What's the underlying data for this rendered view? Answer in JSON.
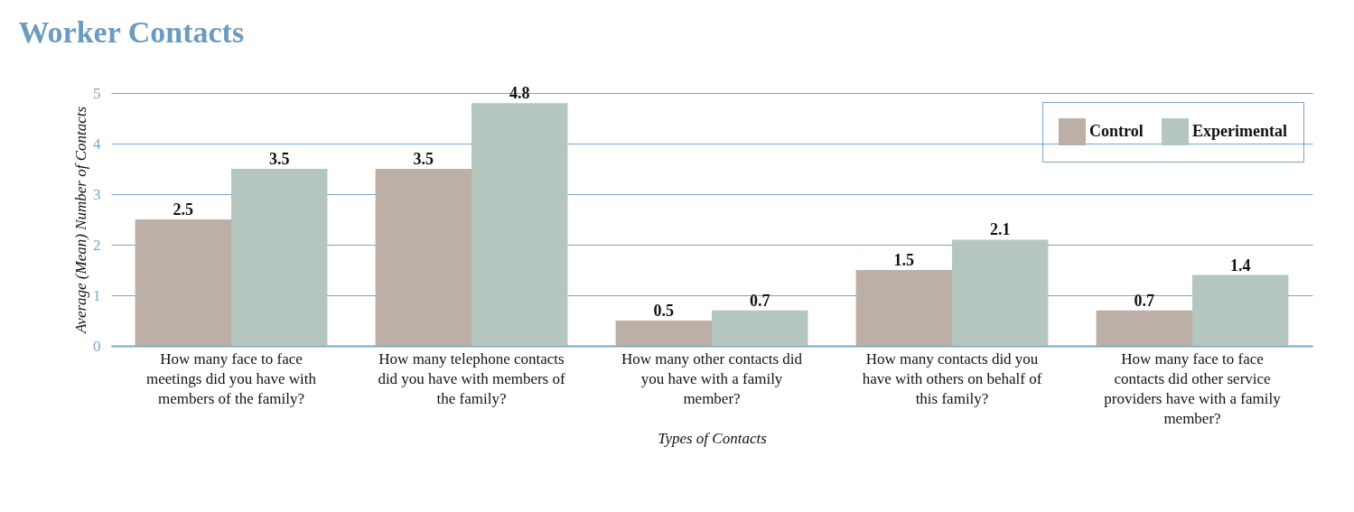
{
  "chart_data": {
    "type": "bar",
    "title": "Worker Contacts",
    "xlabel": "Types of Contacts",
    "ylabel": "Average (Mean) Number of Contacts",
    "categories": [
      "How many face to face meetings did you have with members of the family?",
      "How many telephone contacts did you have with members of the family?",
      "How many other contacts did you have with a family member?",
      "How many contacts did you have with others on behalf of this family?",
      "How many face to face contacts did other service providers have with a family member?"
    ],
    "series": [
      {
        "name": "Control",
        "color": "#bcb0a6",
        "values": [
          2.5,
          3.5,
          0.5,
          1.5,
          0.7
        ]
      },
      {
        "name": "Experimental",
        "color": "#b5c5bf",
        "values": [
          3.5,
          4.8,
          0.7,
          2.1,
          1.4
        ]
      }
    ],
    "ylim": [
      0,
      5
    ],
    "yticks": [
      0,
      1,
      2,
      3,
      4,
      5
    ],
    "grid": "y",
    "legend": "top right",
    "data_labels": true
  }
}
